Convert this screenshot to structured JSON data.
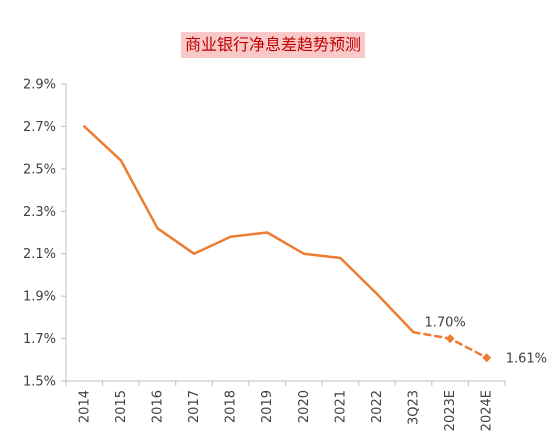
{
  "chart_data": {
    "type": "line",
    "title": "商业银行净息差趋势预测",
    "categories": [
      "2014",
      "2015",
      "2016",
      "2017",
      "2018",
      "2019",
      "2020",
      "2021",
      "2022",
      "3Q23",
      "2023E",
      "2024E"
    ],
    "series": [
      {
        "values": [
          2.7,
          2.54,
          2.22,
          2.1,
          2.18,
          2.2,
          2.1,
          2.08,
          1.91,
          1.73,
          null,
          null
        ],
        "style": "solid",
        "color": "#ed7d31"
      },
      {
        "values": [
          null,
          null,
          null,
          null,
          null,
          null,
          null,
          null,
          null,
          1.73,
          1.7,
          1.61
        ],
        "style": "dashed",
        "marker": "diamond",
        "color": "#ed7d31"
      }
    ],
    "data_labels": [
      {
        "category": "2023E",
        "text": "1.70%"
      },
      {
        "category": "2024E",
        "text": "1.61%"
      }
    ],
    "yticks": [
      "1.5%",
      "1.7%",
      "1.9%",
      "2.1%",
      "2.3%",
      "2.5%",
      "2.7%",
      "2.9%"
    ],
    "ylim": [
      1.5,
      2.9
    ],
    "grid": false,
    "legend": "none"
  }
}
